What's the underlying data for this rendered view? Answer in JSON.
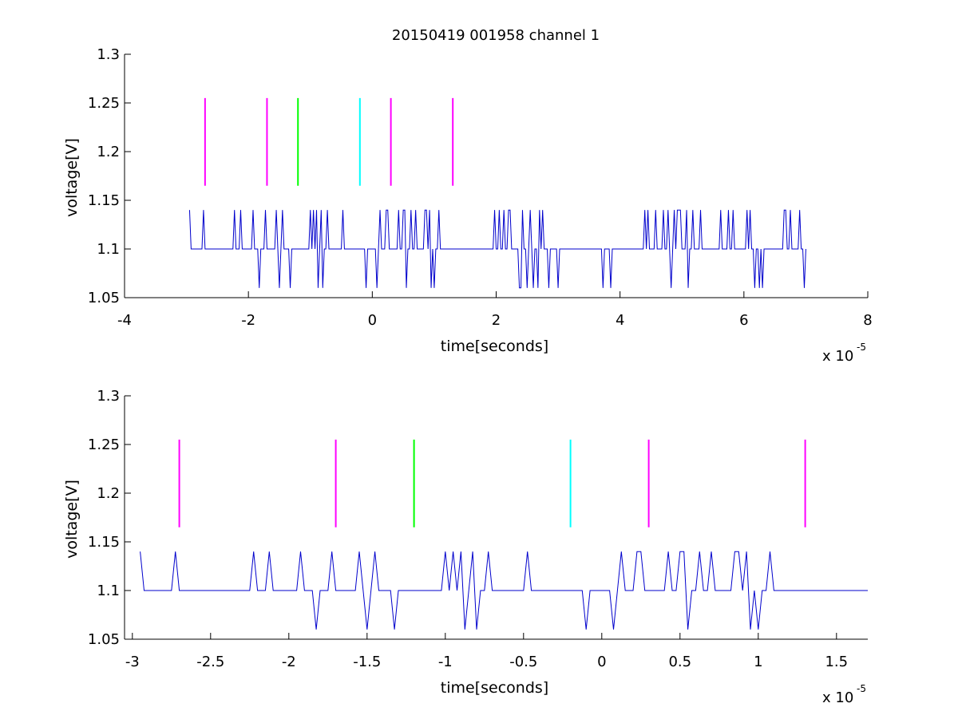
{
  "figure": {
    "title": "20150419 001958 channel 1"
  },
  "chart_data": [
    {
      "type": "line",
      "xlabel": "time[seconds]",
      "ylabel": "voltage[V]",
      "x_exponent_label": "x 10",
      "x_exponent": "-5",
      "xlim": [
        -4,
        8
      ],
      "ylim": [
        1.05,
        1.3
      ],
      "xticks": [
        "-4",
        "-2",
        "0",
        "2",
        "4",
        "6",
        "8"
      ],
      "yticks": [
        "1.05",
        "1.1",
        "1.15",
        "1.2",
        "1.25",
        "1.3"
      ],
      "signal": {
        "color": "#0000cc",
        "x_start": -2.95,
        "x_end": 7.0,
        "levels": [
          1.06,
          1.1,
          1.14
        ]
      },
      "markers": [
        {
          "x": -2.7,
          "color": "#ff00ff",
          "y_range": [
            1.165,
            1.255
          ]
        },
        {
          "x": -1.7,
          "color": "#ff00ff",
          "y_range": [
            1.165,
            1.255
          ]
        },
        {
          "x": -1.2,
          "color": "#00ff00",
          "y_range": [
            1.165,
            1.255
          ]
        },
        {
          "x": -0.2,
          "color": "#00ffff",
          "y_range": [
            1.165,
            1.255
          ]
        },
        {
          "x": 0.3,
          "color": "#ff00ff",
          "y_range": [
            1.165,
            1.255
          ]
        },
        {
          "x": 1.3,
          "color": "#ff00ff",
          "y_range": [
            1.165,
            1.255
          ]
        }
      ],
      "grid": false
    },
    {
      "type": "line",
      "xlabel": "time[seconds]",
      "ylabel": "voltage[V]",
      "x_exponent_label": "x 10",
      "x_exponent": "-5",
      "xlim": [
        -3.05,
        1.7
      ],
      "ylim": [
        1.05,
        1.3
      ],
      "xticks": [
        "-3",
        "-2.5",
        "-2",
        "-1.5",
        "-1",
        "-0.5",
        "0",
        "0.5",
        "1",
        "1.5"
      ],
      "yticks": [
        "1.05",
        "1.1",
        "1.15",
        "1.2",
        "1.25",
        "1.3"
      ],
      "signal": {
        "color": "#0000cc",
        "x_start": -2.95,
        "x_end": 1.7,
        "levels": [
          1.06,
          1.1,
          1.14
        ]
      },
      "markers": [
        {
          "x": -2.7,
          "color": "#ff00ff",
          "y_range": [
            1.165,
            1.255
          ]
        },
        {
          "x": -1.7,
          "color": "#ff00ff",
          "y_range": [
            1.165,
            1.255
          ]
        },
        {
          "x": -1.2,
          "color": "#00ff00",
          "y_range": [
            1.165,
            1.255
          ]
        },
        {
          "x": -0.2,
          "color": "#00ffff",
          "y_range": [
            1.165,
            1.255
          ]
        },
        {
          "x": 0.3,
          "color": "#ff00ff",
          "y_range": [
            1.165,
            1.255
          ]
        },
        {
          "x": 1.3,
          "color": "#ff00ff",
          "y_range": [
            1.165,
            1.255
          ]
        }
      ],
      "grid": false
    }
  ]
}
